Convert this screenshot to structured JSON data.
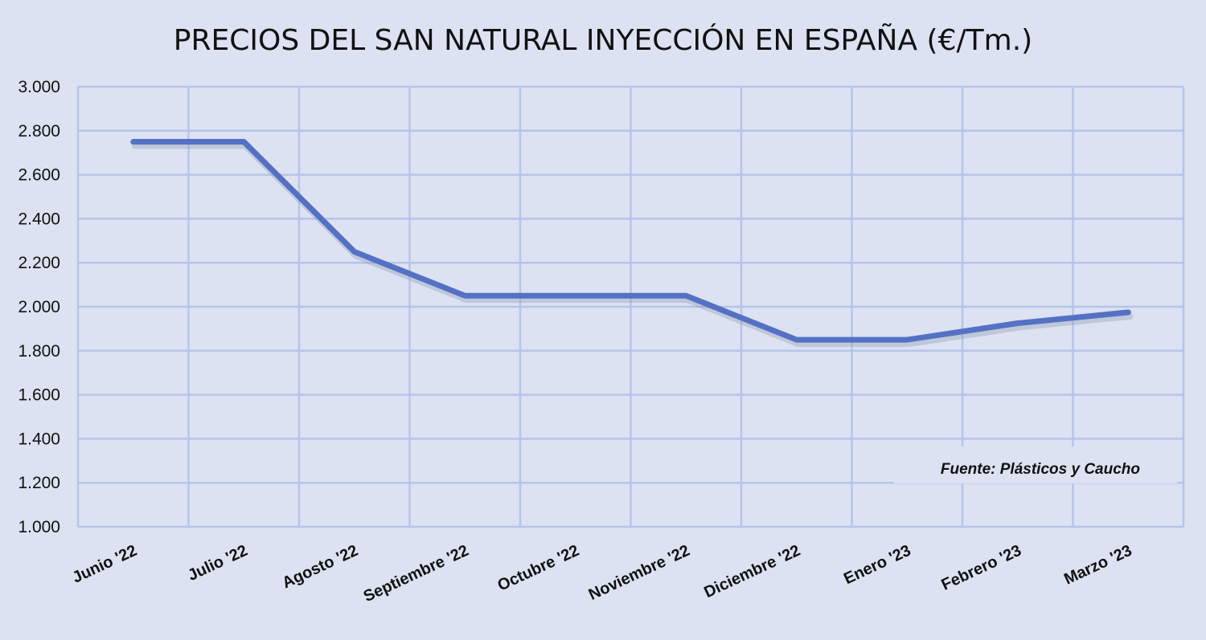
{
  "chart_data": {
    "type": "line",
    "title": "PRECIOS DEL SAN NATURAL INYECCIÓN EN ESPAÑA (€/Tm.)",
    "xlabel": "",
    "ylabel": "",
    "ylim": [
      1000,
      3000
    ],
    "yticks": [
      1000,
      1200,
      1400,
      1600,
      1800,
      2000,
      2200,
      2400,
      2600,
      2800,
      3000
    ],
    "ytick_labels": [
      "1.000",
      "1.200",
      "1.400",
      "1.600",
      "1.800",
      "2.000",
      "2.200",
      "2.400",
      "2.600",
      "2.800",
      "3.000"
    ],
    "grid": true,
    "categories": [
      "Junio '22",
      "Julio '22",
      "Agosto '22",
      "Septiembre '22",
      "Octubre '22",
      "Noviembre '22",
      "Diciembre '22",
      "Enero '23",
      "Febrero '23",
      "Marzo '23"
    ],
    "series": [
      {
        "name": "SAN natural inyección",
        "color": "#5471c4",
        "values": [
          2750,
          2750,
          2250,
          2050,
          2050,
          2050,
          1850,
          1850,
          1925,
          1975
        ]
      }
    ],
    "annotation": "Fuente: Plásticos y Caucho"
  }
}
